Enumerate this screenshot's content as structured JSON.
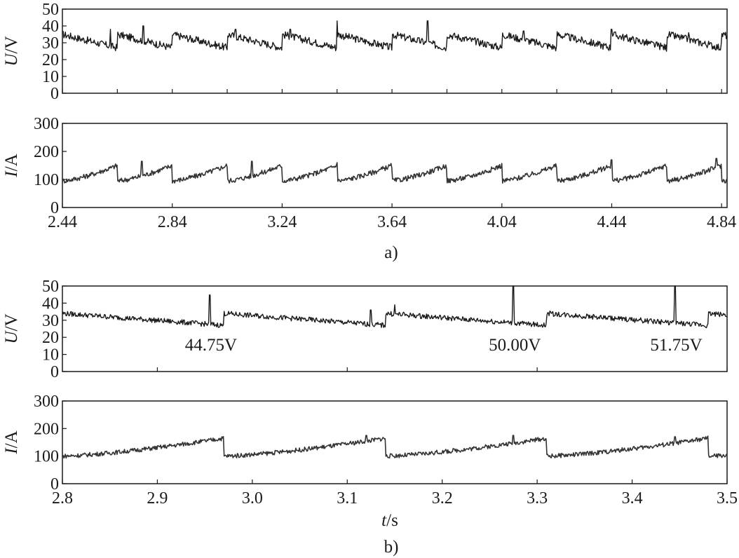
{
  "figure": {
    "panel_a_label": "a)",
    "panel_b_label": "b)",
    "xlabel_b": "t/s"
  },
  "colors": {
    "trace_voltage": "#1a1a1a",
    "trace_current": "#333333",
    "axis": "#1a1a1a"
  },
  "chart_data": [
    {
      "type": "line",
      "panel": "a",
      "title": "",
      "xlabel": "",
      "ylabel": "U/V",
      "xlim": [
        2.44,
        4.86
      ],
      "ylim": [
        0,
        50
      ],
      "yticks": [
        "0",
        "10",
        "20",
        "30",
        "40",
        "50"
      ],
      "xtick_values": [
        2.44,
        2.64,
        2.84,
        3.04,
        3.24,
        3.44,
        3.64,
        3.84,
        4.04,
        4.24,
        4.44,
        4.64,
        4.84
      ],
      "xtick_labels": [],
      "series": [
        {
          "name": "U",
          "baseline": 31,
          "noise": 2.2,
          "cycle_s": 0.2,
          "ramp_min": 27,
          "ramp_max": 35,
          "spikes": [
            {
              "x": 2.615,
              "v": 38
            },
            {
              "x": 2.735,
              "v": 40
            },
            {
              "x": 3.07,
              "v": 38
            },
            {
              "x": 3.27,
              "v": 38
            },
            {
              "x": 3.44,
              "v": 43
            },
            {
              "x": 3.77,
              "v": 43
            },
            {
              "x": 4.12,
              "v": 37
            },
            {
              "x": 4.44,
              "v": 38
            },
            {
              "x": 4.72,
              "v": 36
            }
          ]
        }
      ]
    },
    {
      "type": "line",
      "panel": "a",
      "title": "",
      "xlabel": "",
      "ylabel": "I/A",
      "xlim": [
        2.44,
        4.86
      ],
      "ylim": [
        0,
        300
      ],
      "yticks": [
        "0",
        "100",
        "200",
        "300"
      ],
      "xtick_values": [
        2.44,
        2.84,
        3.24,
        3.64,
        4.04,
        4.44,
        4.84
      ],
      "xtick_labels": [
        "2.44",
        "2.84",
        "3.24",
        "3.64",
        "4.04",
        "4.44",
        "4.84"
      ],
      "series": [
        {
          "name": "I",
          "baseline": 115,
          "noise": 9,
          "cycle_s": 0.2,
          "ramp_min": 95,
          "ramp_max": 150,
          "spikes": [
            {
              "x": 2.73,
              "v": 165
            },
            {
              "x": 3.13,
              "v": 165
            },
            {
              "x": 3.44,
              "v": 160
            },
            {
              "x": 4.44,
              "v": 170
            },
            {
              "x": 4.82,
              "v": 175
            }
          ]
        }
      ]
    },
    {
      "type": "line",
      "panel": "b",
      "title": "",
      "xlabel": "",
      "ylabel": "U/V",
      "xlim": [
        2.8,
        3.5
      ],
      "ylim": [
        0,
        50
      ],
      "yticks": [
        "0",
        "10",
        "20",
        "30",
        "40",
        "50"
      ],
      "xtick_values": [
        2.9,
        3.1,
        3.3,
        3.5
      ],
      "xtick_labels": [],
      "series": [
        {
          "name": "U",
          "baseline": 31,
          "noise": 1.5,
          "cycle_s": 0.17,
          "ramp_min": 27,
          "ramp_max": 34,
          "spikes": [
            {
              "x": 2.955,
              "v": 44.75
            },
            {
              "x": 3.275,
              "v": 50.0
            },
            {
              "x": 3.445,
              "v": 51.75
            },
            {
              "x": 3.15,
              "v": 39
            },
            {
              "x": 3.125,
              "v": 36
            }
          ]
        }
      ],
      "annotations": [
        {
          "text": "44.75V",
          "x": 2.955
        },
        {
          "text": "50.00V",
          "x": 3.275
        },
        {
          "text": "51.75V",
          "x": 3.445
        }
      ]
    },
    {
      "type": "line",
      "panel": "b",
      "title": "",
      "xlabel": "t/s",
      "ylabel": "I/A",
      "xlim": [
        2.8,
        3.5
      ],
      "ylim": [
        0,
        300
      ],
      "yticks": [
        "0",
        "100",
        "200",
        "300"
      ],
      "xtick_values": [
        2.8,
        2.9,
        3.0,
        3.1,
        3.2,
        3.3,
        3.4,
        3.5
      ],
      "xtick_labels": [
        "2.8",
        "2.9",
        "3.0",
        "3.1",
        "3.2",
        "3.3",
        "3.4",
        "3.5"
      ],
      "series": [
        {
          "name": "I",
          "baseline": 115,
          "noise": 8,
          "cycle_s": 0.17,
          "ramp_min": 100,
          "ramp_max": 165,
          "spikes": [
            {
              "x": 3.12,
              "v": 175
            },
            {
              "x": 3.275,
              "v": 175
            },
            {
              "x": 3.445,
              "v": 170
            }
          ]
        }
      ]
    }
  ]
}
